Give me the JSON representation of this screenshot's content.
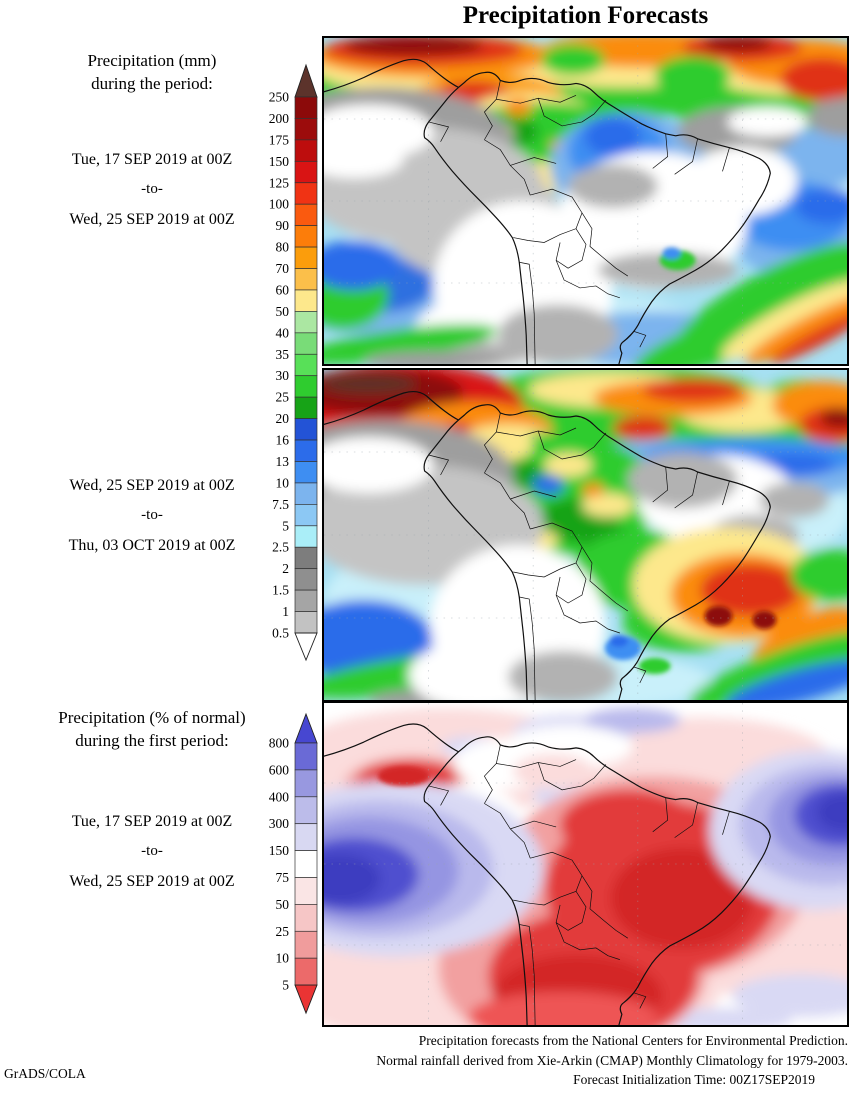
{
  "title": "Precipitation Forecasts",
  "credit": "GrADS/COLA",
  "caption": {
    "line1": "Precipitation forecasts from the National Centers for Environmental Prediction.",
    "line2": "Normal rainfall derived from Xie-Arkin (CMAP) Monthly Climatology for 1979-2003.",
    "line3": "Forecast Initialization Time: 00Z17SEP2019"
  },
  "panels": [
    {
      "heading_line1": "Precipitation (mm)",
      "heading_line2": "during the period:",
      "date_start": "Tue, 17 SEP 2019 at 00Z",
      "date_separator": "-to-",
      "date_end": "Wed, 25 SEP 2019 at 00Z"
    },
    {
      "date_start": "Wed, 25 SEP 2019 at 00Z",
      "date_separator": "-to-",
      "date_end": "Thu, 03 OCT 2019 at 00Z"
    },
    {
      "heading_line1": "Precipitation (% of normal)",
      "heading_line2": "during the first period:",
      "date_start": "Tue, 17 SEP 2019 at 00Z",
      "date_separator": "-to-",
      "date_end": "Wed, 25 SEP 2019 at 00Z"
    }
  ],
  "colorbars": {
    "mm": {
      "unit": "mm",
      "labels": [
        "250",
        "200",
        "175",
        "150",
        "125",
        "100",
        "90",
        "80",
        "70",
        "60",
        "50",
        "40",
        "35",
        "30",
        "25",
        "20",
        "16",
        "13",
        "10",
        "7.5",
        "5",
        "2.5",
        "2",
        "1.5",
        "1",
        "0.5"
      ],
      "top_arrow_color": "#5c332b",
      "bottom_arrow_color": "#ffffff",
      "segment_colors": [
        "#8c0a0a",
        "#9c0c0c",
        "#bd0d0d",
        "#d91414",
        "#f03314",
        "#fa5a0f",
        "#fc7d0a",
        "#fb9d0c",
        "#fbbf4a",
        "#fde88c",
        "#abe7a2",
        "#79dc78",
        "#58e058",
        "#2fcc2f",
        "#17a317",
        "#2353d6",
        "#2c6cea",
        "#3e8ef2",
        "#7cb4ee",
        "#8cc8f4",
        "#aaeef8",
        "#7d7d7d",
        "#8f8f8f",
        "#a5a5a5",
        "#c2c2c2"
      ]
    },
    "percent": {
      "unit": "% of normal",
      "labels": [
        "800",
        "600",
        "400",
        "300",
        "150",
        "75",
        "50",
        "25",
        "10",
        "5"
      ],
      "top_arrow_color": "#4747d1",
      "bottom_arrow_color": "#ea3434",
      "segment_colors": [
        "#6a6ad6",
        "#9898e0",
        "#bcbcea",
        "#d8d8f2",
        "#ffffff",
        "#fae5e5",
        "#f6c6c6",
        "#f09c9c",
        "#ec6a6a"
      ]
    }
  },
  "maps": {
    "region": "South America",
    "map1_variable": "Precipitation (mm), first period",
    "map2_variable": "Precipitation (mm), second period",
    "map3_variable": "Precipitation (% of normal), first period"
  }
}
